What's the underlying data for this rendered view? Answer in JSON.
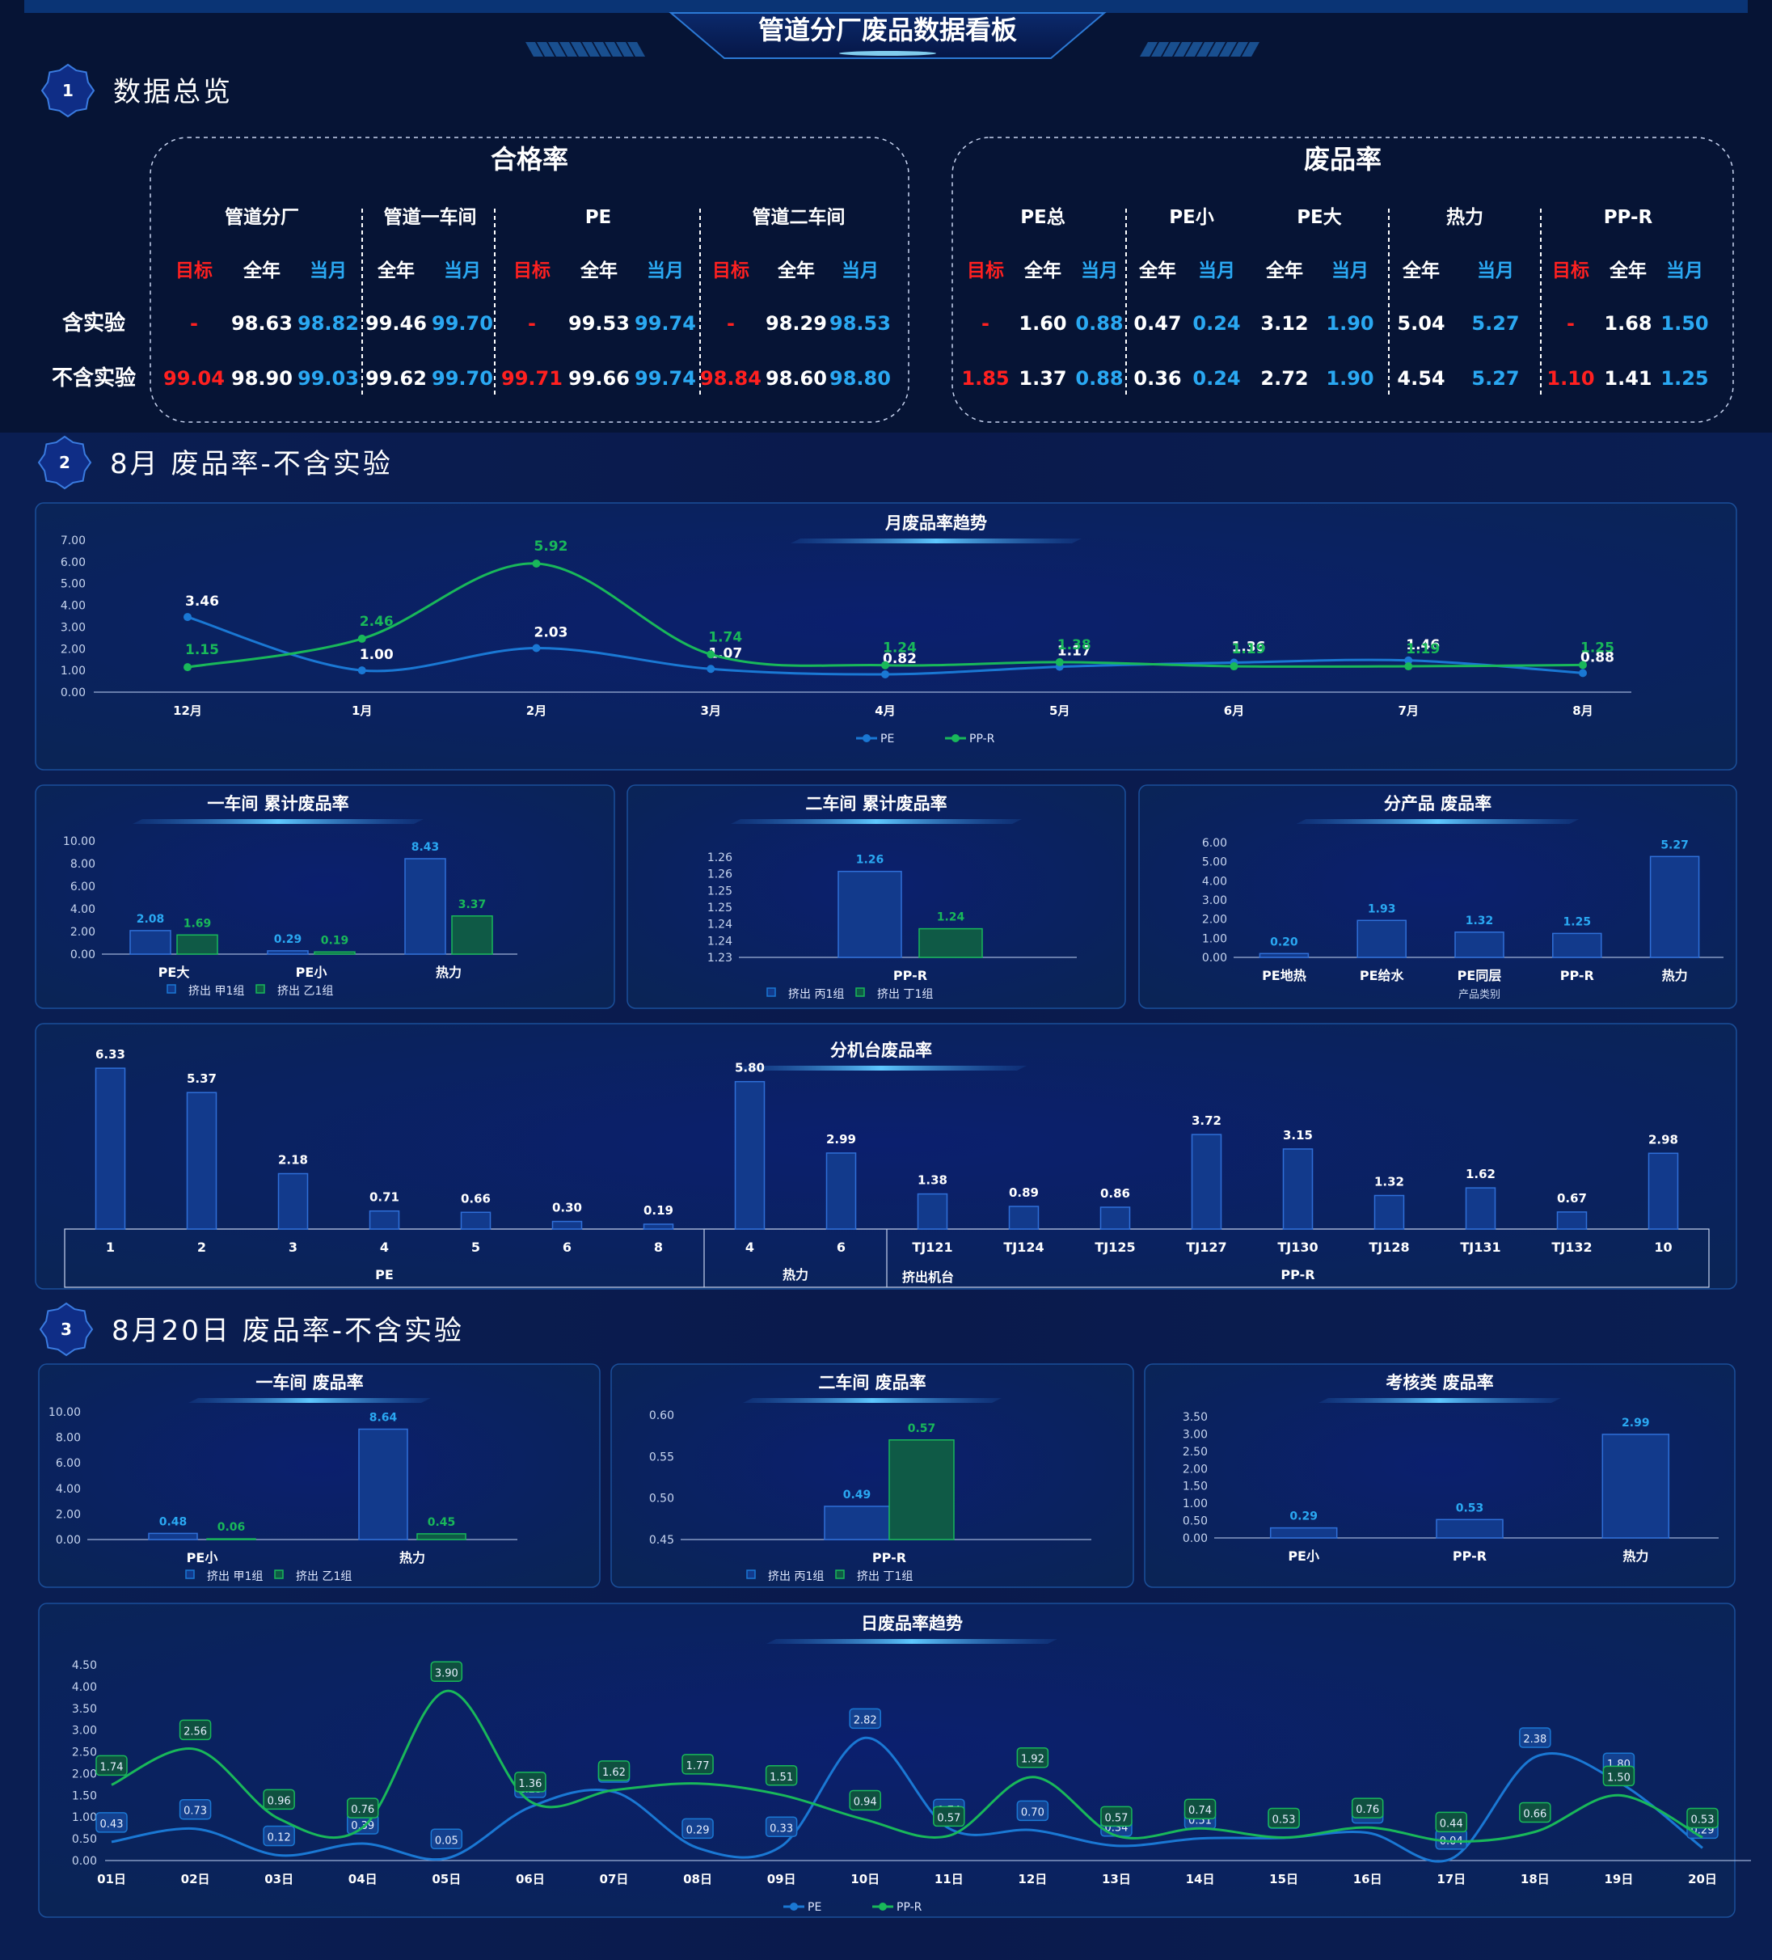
{
  "header": {
    "title": "管道分厂废品数据看板"
  },
  "sections": [
    {
      "num": "1",
      "title": "数据总览"
    },
    {
      "num": "2",
      "title": "8月 废品率-不含实验"
    },
    {
      "num": "3",
      "title": "8月20日 废品率-不含实验"
    }
  ],
  "overview": {
    "row_labels": [
      "含实验",
      "不含实验"
    ],
    "pass_rate": {
      "title": "合格率",
      "groups": [
        {
          "name": "管道分厂",
          "cols": [
            "目标",
            "全年",
            "当月"
          ],
          "rows": [
            [
              "-",
              "98.63",
              "98.82"
            ],
            [
              "99.04",
              "98.90",
              "99.03"
            ]
          ]
        },
        {
          "name": "管道一车间",
          "cols": [
            "全年",
            "当月"
          ],
          "rows": [
            [
              "99.46",
              "99.70"
            ],
            [
              "99.62",
              "99.70"
            ]
          ]
        },
        {
          "name": "PE",
          "cols": [
            "目标",
            "全年",
            "当月"
          ],
          "rows": [
            [
              "-",
              "99.53",
              "99.74"
            ],
            [
              "99.71",
              "99.66",
              "99.74"
            ]
          ]
        },
        {
          "name": "管道二车间",
          "cols": [
            "目标",
            "全年",
            "当月"
          ],
          "rows": [
            [
              "-",
              "98.29",
              "98.53"
            ],
            [
              "98.84",
              "98.60",
              "98.80"
            ]
          ]
        }
      ]
    },
    "scrap_rate": {
      "title": "废品率",
      "groups": [
        {
          "name": "PE总",
          "cols": [
            "目标",
            "全年",
            "当月"
          ],
          "rows": [
            [
              "-",
              "1.60",
              "0.88"
            ],
            [
              "1.85",
              "1.37",
              "0.88"
            ]
          ]
        },
        {
          "name": "PE小",
          "cols": [
            "全年",
            "当月"
          ],
          "rows": [
            [
              "0.47",
              "0.24"
            ],
            [
              "0.36",
              "0.24"
            ]
          ]
        },
        {
          "name": "PE大",
          "cols": [
            "全年",
            "当月"
          ],
          "rows": [
            [
              "3.12",
              "1.90"
            ],
            [
              "2.72",
              "1.90"
            ]
          ]
        },
        {
          "name": "热力",
          "cols": [
            "全年",
            "当月"
          ],
          "rows": [
            [
              "5.04",
              "5.27"
            ],
            [
              "4.54",
              "5.27"
            ]
          ]
        },
        {
          "name": "PP-R",
          "cols": [
            "目标",
            "全年",
            "当月"
          ],
          "rows": [
            [
              "-",
              "1.68",
              "1.50"
            ],
            [
              "1.10",
              "1.41",
              "1.25"
            ]
          ]
        }
      ]
    }
  },
  "colors": {
    "target": "#ff2020",
    "month": "#2aa8f2",
    "pe": "#1a78d4",
    "ppr": "#19b85a",
    "bar_blue": "#123a8c",
    "bar_green": "#0f5a46"
  },
  "chart_data": [
    {
      "id": "monthly_trend",
      "type": "line",
      "title": "月废品率趋势",
      "categories": [
        "12月",
        "1月",
        "2月",
        "3月",
        "4月",
        "5月",
        "6月",
        "7月",
        "8月"
      ],
      "series": [
        {
          "name": "PE",
          "values": [
            3.46,
            1.0,
            2.03,
            1.07,
            0.82,
            1.17,
            1.36,
            1.46,
            0.88
          ]
        },
        {
          "name": "PP-R",
          "values": [
            1.15,
            2.46,
            5.92,
            1.74,
            1.24,
            1.38,
            1.19,
            1.19,
            1.25
          ]
        }
      ],
      "ylim": [
        0,
        7
      ],
      "yticks": [
        "0.00",
        "1.00",
        "2.00",
        "3.00",
        "4.00",
        "5.00",
        "6.00",
        "7.00"
      ],
      "legend": "bottom"
    },
    {
      "id": "ws1_cum",
      "type": "bar",
      "title": "一车间 累计废品率",
      "categories": [
        "PE大",
        "PE小",
        "热力"
      ],
      "series": [
        {
          "name": "挤出 甲1组",
          "values": [
            2.08,
            0.29,
            8.43
          ]
        },
        {
          "name": "挤出 乙1组",
          "values": [
            1.69,
            0.19,
            3.37
          ]
        }
      ],
      "ylim": [
        0,
        10
      ],
      "yticks": [
        "0.00",
        "2.00",
        "4.00",
        "6.00",
        "8.00",
        "10.00"
      ],
      "legend": "bottom"
    },
    {
      "id": "ws2_cum",
      "type": "bar",
      "title": "二车间 累计废品率",
      "categories": [
        "PP-R"
      ],
      "series": [
        {
          "name": "挤出 丙1组",
          "values": [
            1.26
          ]
        },
        {
          "name": "挤出 丁1组",
          "values": [
            1.24
          ]
        }
      ],
      "ylim": [
        1.23,
        1.265
      ],
      "yticks": [
        "1.23",
        "1.24",
        "1.24",
        "1.25",
        "1.25",
        "1.26",
        "1.26"
      ],
      "legend": "bottom"
    },
    {
      "id": "by_product",
      "type": "bar",
      "title": "分产品 废品率",
      "categories": [
        "PE地热",
        "PE给水",
        "PE同层",
        "PP-R",
        "热力"
      ],
      "values": [
        0.2,
        1.93,
        1.32,
        1.25,
        5.27
      ],
      "ylim": [
        0,
        6
      ],
      "yticks": [
        "0.00",
        "1.00",
        "2.00",
        "3.00",
        "4.00",
        "5.00",
        "6.00"
      ],
      "xlabel": "产品类别"
    },
    {
      "id": "by_machine",
      "type": "bar",
      "title": "分机台废品率",
      "categories": [
        "1",
        "2",
        "3",
        "4",
        "5",
        "6",
        "8",
        "4",
        "6",
        "TJ121",
        "TJ124",
        "TJ125",
        "TJ127",
        "TJ130",
        "TJ128",
        "TJ131",
        "TJ132",
        "10"
      ],
      "values": [
        6.33,
        5.37,
        2.18,
        0.71,
        0.66,
        0.3,
        0.19,
        5.8,
        2.99,
        1.38,
        0.89,
        0.86,
        3.72,
        3.15,
        1.32,
        1.62,
        0.67,
        2.98
      ],
      "groups": [
        {
          "name": "PE",
          "count": 7
        },
        {
          "name": "热力",
          "count": 2
        },
        {
          "name": "PP-R",
          "count": 9
        }
      ],
      "group_label": "挤出机台",
      "ylim": [
        0,
        7
      ]
    },
    {
      "id": "ws1_day",
      "type": "bar",
      "title": "一车间 废品率",
      "categories": [
        "PE小",
        "热力"
      ],
      "series": [
        {
          "name": "挤出 甲1组",
          "values": [
            0.48,
            8.64
          ]
        },
        {
          "name": "挤出 乙1组",
          "values": [
            0.06,
            0.45
          ]
        }
      ],
      "ylim": [
        0,
        10
      ],
      "yticks": [
        "0.00",
        "2.00",
        "4.00",
        "6.00",
        "8.00",
        "10.00"
      ],
      "legend": "bottom"
    },
    {
      "id": "ws2_day",
      "type": "bar",
      "title": "二车间 废品率",
      "categories": [
        "PP-R"
      ],
      "series": [
        {
          "name": "挤出 丙1组",
          "values": [
            0.49
          ]
        },
        {
          "name": "挤出 丁1组",
          "values": [
            0.57
          ]
        }
      ],
      "ylim": [
        0.45,
        0.6
      ],
      "yticks": [
        "0.45",
        "0.50",
        "0.55",
        "0.60"
      ],
      "legend": "bottom"
    },
    {
      "id": "assess_day",
      "type": "bar",
      "title": "考核类 废品率",
      "categories": [
        "PE小",
        "PP-R",
        "热力"
      ],
      "values": [
        0.29,
        0.53,
        2.99
      ],
      "ylim": [
        0,
        3.5
      ],
      "yticks": [
        "0.00",
        "0.50",
        "1.00",
        "1.50",
        "2.00",
        "2.50",
        "3.00",
        "3.50"
      ]
    },
    {
      "id": "daily_trend",
      "type": "line",
      "title": "日废品率趋势",
      "categories": [
        "01日",
        "02日",
        "03日",
        "04日",
        "05日",
        "06日",
        "07日",
        "08日",
        "09日",
        "10日",
        "11日",
        "12日",
        "13日",
        "14日",
        "15日",
        "16日",
        "17日",
        "18日",
        "19日",
        "20日"
      ],
      "series": [
        {
          "name": "PE",
          "values": [
            0.43,
            0.73,
            0.12,
            0.39,
            0.05,
            1.23,
            1.58,
            0.29,
            0.33,
            2.82,
            0.74,
            0.7,
            0.34,
            0.51,
            0.52,
            0.64,
            0.04,
            2.38,
            1.8,
            0.29
          ]
        },
        {
          "name": "PP-R",
          "values": [
            1.74,
            2.56,
            0.96,
            0.76,
            3.9,
            1.36,
            1.62,
            1.77,
            1.51,
            0.94,
            0.57,
            1.92,
            0.57,
            0.74,
            0.53,
            0.76,
            0.44,
            0.66,
            1.5,
            0.53
          ]
        }
      ],
      "ylim": [
        0,
        4.5
      ],
      "yticks": [
        "0.00",
        "0.50",
        "1.00",
        "1.50",
        "2.00",
        "2.50",
        "3.00",
        "3.50",
        "4.00",
        "4.50"
      ],
      "legend": "bottom"
    }
  ]
}
